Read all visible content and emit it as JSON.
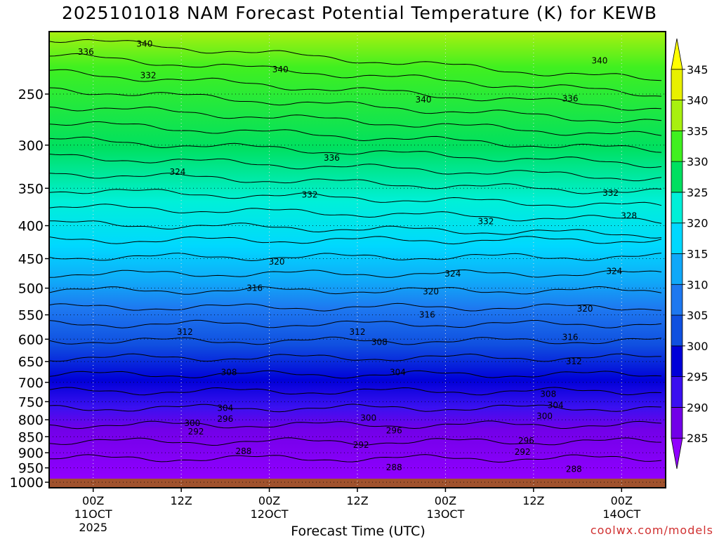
{
  "title": "2025101018 NAM Forecast Potential Temperature (K) for KEWB",
  "xlabel": "Forecast Time (UTC)",
  "credit": "coolwx.com/models",
  "chart_data": {
    "type": "heatmap",
    "title": "2025101018 NAM Forecast Potential Temperature (K) for KEWB",
    "xlabel": "Forecast Time (UTC)",
    "ylabel": "",
    "x_ticks": [
      {
        "hour": 6,
        "lines": [
          "00Z",
          "11OCT",
          "2025"
        ]
      },
      {
        "hour": 18,
        "lines": [
          "12Z"
        ]
      },
      {
        "hour": 30,
        "lines": [
          "00Z",
          "12OCT"
        ]
      },
      {
        "hour": 42,
        "lines": [
          "12Z"
        ]
      },
      {
        "hour": 54,
        "lines": [
          "00Z",
          "13OCT"
        ]
      },
      {
        "hour": 66,
        "lines": [
          "12Z"
        ]
      },
      {
        "hour": 78,
        "lines": [
          "00Z",
          "14OCT"
        ]
      }
    ],
    "x_range_hours": [
      0,
      84
    ],
    "y_ticks": [
      250,
      300,
      350,
      400,
      450,
      500,
      550,
      600,
      650,
      700,
      750,
      800,
      850,
      900,
      950,
      1000
    ],
    "y_range": [
      200,
      1020
    ],
    "y_scale": "log",
    "y_reversed": true,
    "grid": true,
    "colorbar": {
      "levels": [
        285,
        290,
        295,
        300,
        305,
        310,
        315,
        320,
        325,
        330,
        335,
        340,
        345
      ],
      "colors": [
        "#9000ff",
        "#7200e8",
        "#3a10f0",
        "#0000d8",
        "#1050e0",
        "#1e78f0",
        "#10a8f8",
        "#00d8ff",
        "#00f0d8",
        "#00e060",
        "#40f020",
        "#a8f010",
        "#e8f000",
        "#ffff00"
      ]
    },
    "contour_labels": [
      {
        "value": "340",
        "hour": 13,
        "p": 209
      },
      {
        "value": "336",
        "hour": 5,
        "p": 215
      },
      {
        "value": "340",
        "hour": 31.5,
        "p": 229
      },
      {
        "value": "332",
        "hour": 13.5,
        "p": 234
      },
      {
        "value": "340",
        "hour": 51,
        "p": 255
      },
      {
        "value": "336",
        "hour": 71,
        "p": 254
      },
      {
        "value": "340",
        "hour": 75,
        "p": 222
      },
      {
        "value": "336",
        "hour": 38.5,
        "p": 314
      },
      {
        "value": "324",
        "hour": 17.5,
        "p": 330
      },
      {
        "value": "332",
        "hour": 35.5,
        "p": 358
      },
      {
        "value": "332",
        "hour": 76.5,
        "p": 356
      },
      {
        "value": "332",
        "hour": 59.5,
        "p": 394
      },
      {
        "value": "328",
        "hour": 79,
        "p": 386
      },
      {
        "value": "320",
        "hour": 31,
        "p": 455
      },
      {
        "value": "324",
        "hour": 55,
        "p": 475
      },
      {
        "value": "324",
        "hour": 77,
        "p": 471
      },
      {
        "value": "316",
        "hour": 28,
        "p": 500
      },
      {
        "value": "320",
        "hour": 52,
        "p": 506
      },
      {
        "value": "316",
        "hour": 51.5,
        "p": 550
      },
      {
        "value": "320",
        "hour": 73,
        "p": 538
      },
      {
        "value": "312",
        "hour": 18.5,
        "p": 585
      },
      {
        "value": "312",
        "hour": 42,
        "p": 585
      },
      {
        "value": "308",
        "hour": 45,
        "p": 606
      },
      {
        "value": "316",
        "hour": 71,
        "p": 596
      },
      {
        "value": "312",
        "hour": 71.5,
        "p": 650
      },
      {
        "value": "308",
        "hour": 24.5,
        "p": 675
      },
      {
        "value": "304",
        "hour": 47.5,
        "p": 675
      },
      {
        "value": "308",
        "hour": 68,
        "p": 730
      },
      {
        "value": "304",
        "hour": 24,
        "p": 767
      },
      {
        "value": "304",
        "hour": 69,
        "p": 760
      },
      {
        "value": "296",
        "hour": 24,
        "p": 798
      },
      {
        "value": "300",
        "hour": 43.5,
        "p": 795
      },
      {
        "value": "300",
        "hour": 67.5,
        "p": 790
      },
      {
        "value": "300",
        "hour": 19.5,
        "p": 810
      },
      {
        "value": "292",
        "hour": 20,
        "p": 835
      },
      {
        "value": "296",
        "hour": 47,
        "p": 832
      },
      {
        "value": "296",
        "hour": 65,
        "p": 862
      },
      {
        "value": "292",
        "hour": 42.5,
        "p": 875
      },
      {
        "value": "288",
        "hour": 26.5,
        "p": 895
      },
      {
        "value": "292",
        "hour": 64.5,
        "p": 898
      },
      {
        "value": "288",
        "hour": 47,
        "p": 948
      },
      {
        "value": "288",
        "hour": 71.5,
        "p": 955
      }
    ]
  }
}
